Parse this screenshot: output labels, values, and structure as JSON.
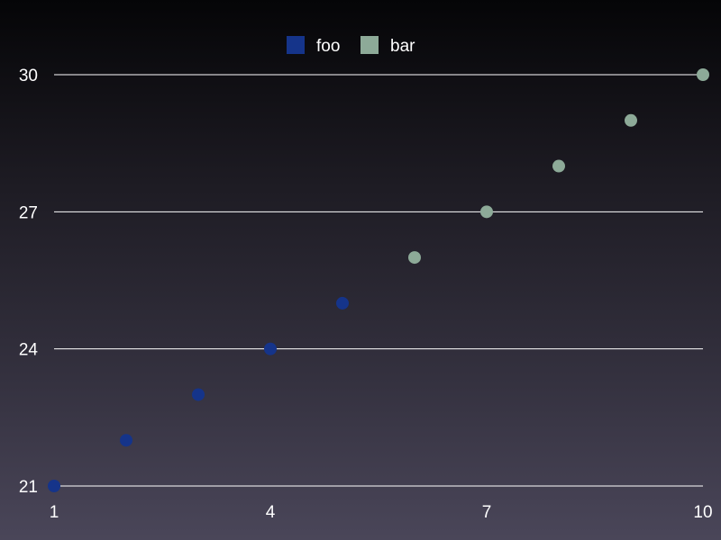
{
  "chart_data": {
    "type": "scatter",
    "title": "",
    "xlabel": "",
    "ylabel": "",
    "xlim": [
      1,
      10
    ],
    "ylim": [
      21,
      30
    ],
    "x_ticks": [
      1,
      4,
      7,
      10
    ],
    "y_ticks": [
      21,
      24,
      27,
      30
    ],
    "grid": "horizontal",
    "legend_position": "top-center",
    "series": [
      {
        "name": "foo",
        "color": "#15348a",
        "points": [
          [
            1,
            21
          ],
          [
            2,
            22
          ],
          [
            3,
            23
          ],
          [
            4,
            24
          ],
          [
            5,
            25
          ]
        ]
      },
      {
        "name": "bar",
        "color": "#8daa98",
        "points": [
          [
            6,
            26
          ],
          [
            7,
            27
          ],
          [
            8,
            28
          ],
          [
            9,
            29
          ],
          [
            10,
            30
          ]
        ]
      }
    ]
  }
}
